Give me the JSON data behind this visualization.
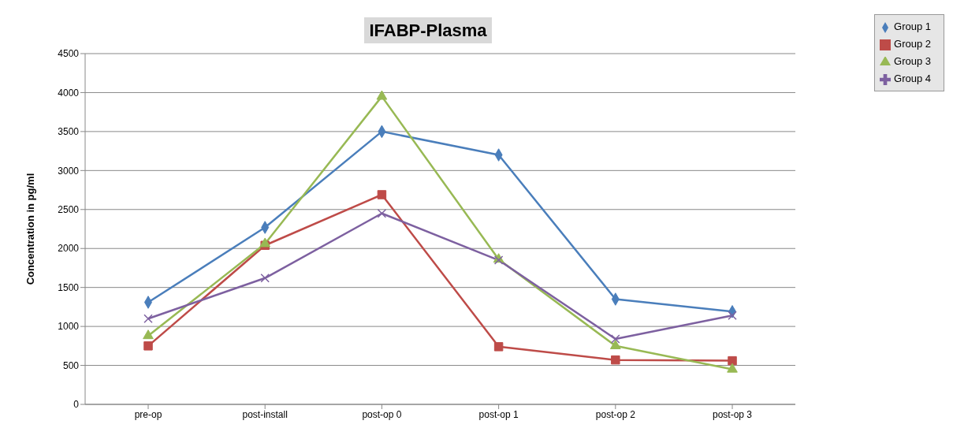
{
  "chart_data": {
    "type": "line",
    "title": "IFABP-Plasma",
    "ylabel": "Concentration in pg/ml",
    "categories": [
      "pre-op",
      "post-install",
      "post-op 0",
      "post-op 1",
      "post-op 2",
      "post-op 3"
    ],
    "series": [
      {
        "name": "Group 1",
        "color": "#4a7ebb",
        "marker": "diamond",
        "values": [
          1310,
          2270,
          3500,
          3200,
          1350,
          1190
        ]
      },
      {
        "name": "Group 2",
        "color": "#be4b48",
        "marker": "square",
        "values": [
          750,
          2040,
          2690,
          740,
          570,
          560
        ]
      },
      {
        "name": "Group 3",
        "color": "#98b954",
        "marker": "triangle",
        "values": [
          880,
          2060,
          3950,
          1860,
          750,
          450
        ]
      },
      {
        "name": "Group 4",
        "color": "#7d60a0",
        "marker": "cross",
        "values": [
          1100,
          1620,
          2450,
          1850,
          840,
          1140
        ]
      }
    ],
    "ylim": [
      0,
      4500
    ],
    "yticks": [
      0,
      500,
      1000,
      1500,
      2000,
      2500,
      3000,
      3500,
      4000,
      4500
    ],
    "grid": "y",
    "legend": "top right",
    "line_style": "solid"
  }
}
